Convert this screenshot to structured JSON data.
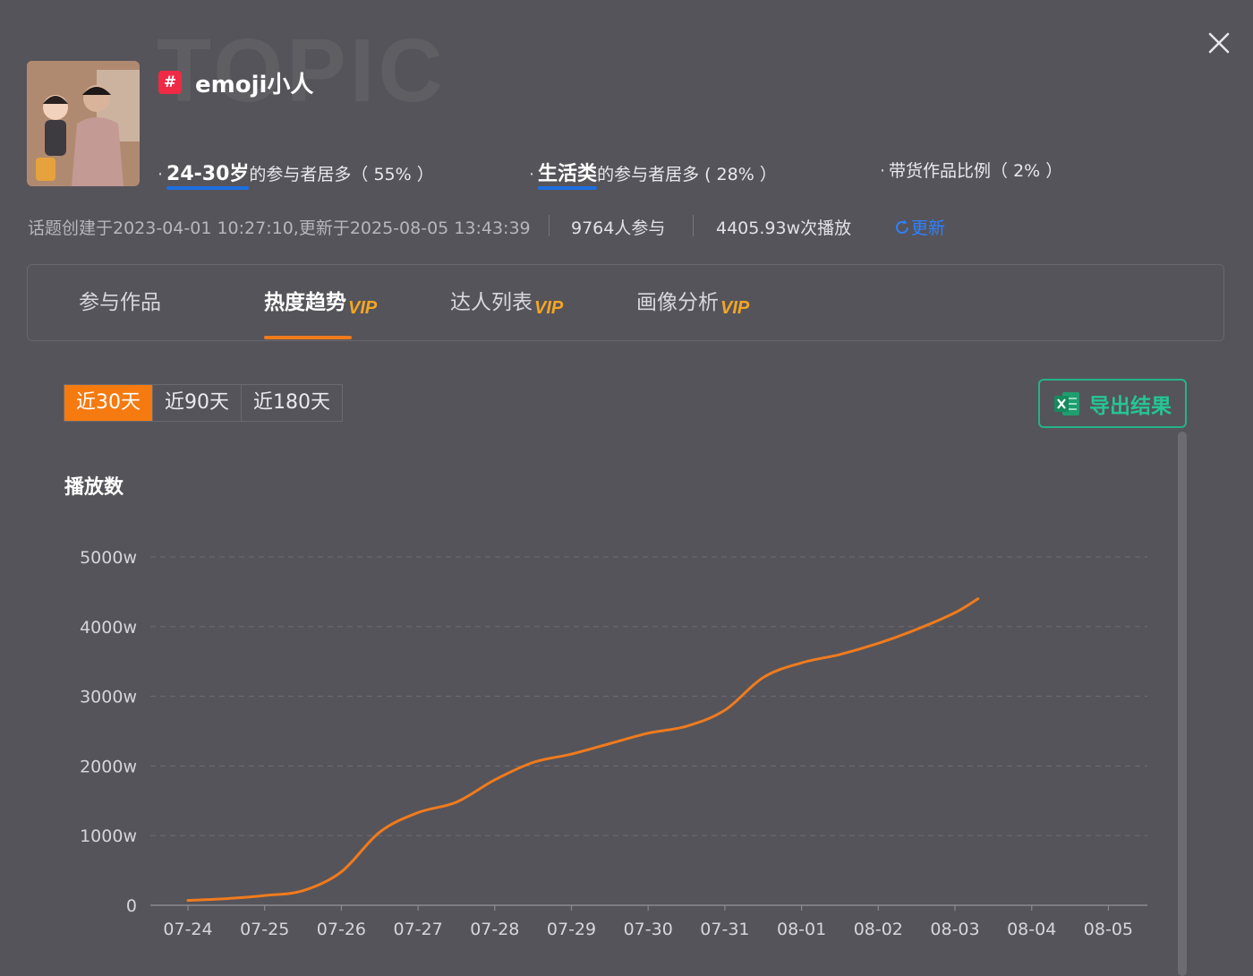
{
  "watermark": "TOPIC",
  "header": {
    "title": "emoji小人",
    "hash_symbol": "#"
  },
  "stats": [
    {
      "highlight": "24-30岁",
      "text": "的参与者居多（ 55% ）"
    },
    {
      "highlight": "生活类",
      "text": "的参与者居多 ( 28% ）"
    },
    {
      "highlight": "",
      "text": "带货作品比例（ 2% ）"
    }
  ],
  "meta": {
    "created": "话题创建于2023-04-01 10:27:10,更新于2025-08-05 13:43:39",
    "participants": "9764人参与",
    "plays": "4405.93w次播放",
    "refresh_label": "更新"
  },
  "tabs": [
    {
      "label": "参与作品",
      "vip": ""
    },
    {
      "label": "热度趋势",
      "vip": "VIP"
    },
    {
      "label": "达人列表",
      "vip": "VIP"
    },
    {
      "label": "画像分析",
      "vip": "VIP"
    }
  ],
  "ranges": [
    "近30天",
    "近90天",
    "近180天"
  ],
  "export_label": "导出结果",
  "colors": {
    "accent": "#f57a10",
    "export": "#25b28a",
    "link": "#2f80ff",
    "line": "#f07b1d"
  },
  "chart_data": {
    "type": "line",
    "ylabel": "播放数",
    "categories": [
      "07-24",
      "07-25",
      "07-26",
      "07-27",
      "07-28",
      "07-29",
      "07-30",
      "07-31",
      "08-01",
      "08-02",
      "08-03",
      "08-04",
      "08-05"
    ],
    "y_ticks": [
      "0",
      "1000w",
      "2000w",
      "3000w",
      "4000w",
      "5000w"
    ],
    "ylim": [
      0,
      5000
    ],
    "grid": true,
    "series": [
      {
        "name": "",
        "points": [
          [
            0,
            70
          ],
          [
            0.5,
            95
          ],
          [
            1,
            140
          ],
          [
            1.5,
            210
          ],
          [
            2,
            480
          ],
          [
            2.5,
            1050
          ],
          [
            3,
            1330
          ],
          [
            3.5,
            1480
          ],
          [
            4,
            1800
          ],
          [
            4.5,
            2050
          ],
          [
            5,
            2170
          ],
          [
            5.5,
            2320
          ],
          [
            6,
            2470
          ],
          [
            6.5,
            2570
          ],
          [
            7,
            2800
          ],
          [
            7.5,
            3270
          ],
          [
            8,
            3480
          ],
          [
            8.5,
            3600
          ],
          [
            9,
            3760
          ],
          [
            9.5,
            3960
          ],
          [
            10,
            4200
          ],
          [
            10.3,
            4400
          ]
        ]
      }
    ]
  }
}
